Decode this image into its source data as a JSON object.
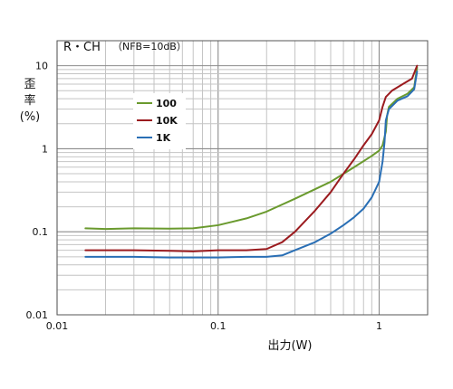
{
  "chart_data": {
    "type": "line",
    "title": "",
    "annotation": "R・CH",
    "annotation2": "（NFB=10dB）",
    "xlabel": "出力(W)",
    "ylabel_lines": [
      "歪",
      "率",
      "(%)"
    ],
    "xscale": "log",
    "yscale": "log",
    "xlim": [
      0.01,
      2
    ],
    "ylim": [
      0.01,
      20
    ],
    "grid": true,
    "legend_position": "upper-left",
    "x_ticks": [
      {
        "value": 0.01,
        "label": "0.01"
      },
      {
        "value": 0.1,
        "label": "0.1"
      },
      {
        "value": 1,
        "label": "1"
      }
    ],
    "y_ticks": [
      {
        "value": 0.01,
        "label": "0.01"
      },
      {
        "value": 0.1,
        "label": "0.1"
      },
      {
        "value": 1,
        "label": "1"
      },
      {
        "value": 10,
        "label": "10"
      }
    ],
    "series": [
      {
        "name": "100",
        "color": "#6a9a2e",
        "points": [
          [
            0.015,
            0.11
          ],
          [
            0.02,
            0.108
          ],
          [
            0.03,
            0.11
          ],
          [
            0.05,
            0.109
          ],
          [
            0.07,
            0.11
          ],
          [
            0.1,
            0.12
          ],
          [
            0.15,
            0.145
          ],
          [
            0.2,
            0.175
          ],
          [
            0.3,
            0.25
          ],
          [
            0.5,
            0.4
          ],
          [
            0.7,
            0.6
          ],
          [
            0.9,
            0.82
          ],
          [
            1.0,
            0.95
          ],
          [
            1.05,
            1.1
          ],
          [
            1.1,
            1.6
          ],
          [
            1.12,
            2.5
          ],
          [
            1.15,
            3.2
          ],
          [
            1.3,
            4.0
          ],
          [
            1.5,
            4.6
          ],
          [
            1.65,
            5.5
          ],
          [
            1.72,
            9.5
          ]
        ]
      },
      {
        "name": "10K",
        "color": "#9b1b1f",
        "points": [
          [
            0.015,
            0.06
          ],
          [
            0.02,
            0.06
          ],
          [
            0.03,
            0.06
          ],
          [
            0.05,
            0.059
          ],
          [
            0.07,
            0.058
          ],
          [
            0.1,
            0.06
          ],
          [
            0.15,
            0.06
          ],
          [
            0.2,
            0.062
          ],
          [
            0.25,
            0.075
          ],
          [
            0.3,
            0.1
          ],
          [
            0.4,
            0.18
          ],
          [
            0.5,
            0.3
          ],
          [
            0.6,
            0.5
          ],
          [
            0.7,
            0.75
          ],
          [
            0.8,
            1.1
          ],
          [
            0.9,
            1.5
          ],
          [
            1.0,
            2.2
          ],
          [
            1.05,
            3.2
          ],
          [
            1.1,
            4.2
          ],
          [
            1.2,
            5.0
          ],
          [
            1.4,
            6.0
          ],
          [
            1.6,
            7.0
          ],
          [
            1.72,
            10.0
          ]
        ]
      },
      {
        "name": "1K",
        "color": "#2a6fb5",
        "points": [
          [
            0.015,
            0.05
          ],
          [
            0.02,
            0.05
          ],
          [
            0.03,
            0.05
          ],
          [
            0.05,
            0.049
          ],
          [
            0.07,
            0.049
          ],
          [
            0.1,
            0.049
          ],
          [
            0.15,
            0.05
          ],
          [
            0.2,
            0.05
          ],
          [
            0.25,
            0.052
          ],
          [
            0.3,
            0.06
          ],
          [
            0.4,
            0.075
          ],
          [
            0.5,
            0.095
          ],
          [
            0.6,
            0.12
          ],
          [
            0.7,
            0.15
          ],
          [
            0.8,
            0.19
          ],
          [
            0.9,
            0.26
          ],
          [
            1.0,
            0.4
          ],
          [
            1.05,
            0.7
          ],
          [
            1.08,
            1.2
          ],
          [
            1.1,
            2.2
          ],
          [
            1.15,
            3.0
          ],
          [
            1.3,
            3.8
          ],
          [
            1.5,
            4.3
          ],
          [
            1.65,
            5.2
          ],
          [
            1.72,
            8.5
          ]
        ]
      }
    ]
  }
}
